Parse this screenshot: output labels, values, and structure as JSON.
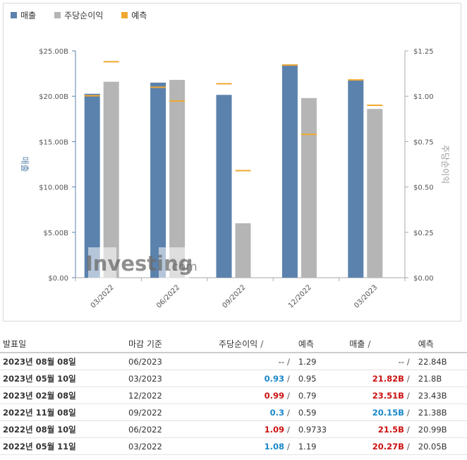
{
  "legend": {
    "revenue": "매출",
    "eps": "주당순이익",
    "forecast": "예측"
  },
  "colors": {
    "revenue": "#5b82ad",
    "eps": "#b5b5b5",
    "forecast": "#f0a830",
    "green_positive": "#1a87c9",
    "red_negative": "#cc1111"
  },
  "watermark": "Investing.com",
  "chart_data": {
    "type": "bar",
    "categories": [
      "03/2022",
      "06/2022",
      "09/2022",
      "12/2022",
      "03/2023"
    ],
    "series": [
      {
        "name": "매출",
        "axis": "left",
        "values": [
          20.27,
          21.5,
          20.15,
          23.51,
          21.82
        ],
        "forecast": [
          20.05,
          20.99,
          21.38,
          23.43,
          21.8
        ]
      },
      {
        "name": "주당순이익",
        "axis": "right",
        "values": [
          1.08,
          1.09,
          0.3,
          0.99,
          0.93
        ],
        "forecast": [
          1.19,
          0.9733,
          0.59,
          0.79,
          0.95
        ]
      }
    ],
    "ylabel": "매출",
    "y2label": "주당순이익",
    "ylim": [
      0,
      25
    ],
    "y2lim": [
      0,
      1.25
    ],
    "yticks": [
      "$0.00",
      "$5.00B",
      "$10.00B",
      "$15.00B",
      "$20.00B",
      "$25.00B"
    ],
    "y2ticks": [
      "$0.00",
      "$0.25",
      "$0.50",
      "$0.75",
      "$1.00",
      "$1.25"
    ],
    "grid": false,
    "legend_position": "top-left"
  },
  "table": {
    "headers": {
      "date": "발표일",
      "period": "마감 기준",
      "eps": "주당순이익",
      "eps_forecast": "예측",
      "revenue": "매출",
      "rev_forecast": "예측",
      "slash": "/"
    },
    "rows": [
      {
        "date": "2023년 08월 08일",
        "period": "06/2023",
        "eps": "--",
        "eps_forecast": "1.29",
        "revenue": "--",
        "rev_forecast": "22.84B",
        "eps_color": "plain",
        "rev_color": "plain"
      },
      {
        "date": "2023년 05월 10일",
        "period": "03/2023",
        "eps": "0.93",
        "eps_forecast": "0.95",
        "revenue": "21.82B",
        "rev_forecast": "21.8B",
        "eps_color": "blue",
        "rev_color": "red"
      },
      {
        "date": "2023년 02월 08일",
        "period": "12/2022",
        "eps": "0.99",
        "eps_forecast": "0.79",
        "revenue": "23.51B",
        "rev_forecast": "23.43B",
        "eps_color": "red",
        "rev_color": "red"
      },
      {
        "date": "2022년 11월 08일",
        "period": "09/2022",
        "eps": "0.3",
        "eps_forecast": "0.59",
        "revenue": "20.15B",
        "rev_forecast": "21.38B",
        "eps_color": "blue",
        "rev_color": "blue"
      },
      {
        "date": "2022년 08월 10일",
        "period": "06/2022",
        "eps": "1.09",
        "eps_forecast": "0.9733",
        "revenue": "21.5B",
        "rev_forecast": "20.99B",
        "eps_color": "red",
        "rev_color": "red"
      },
      {
        "date": "2022년 05월 11일",
        "period": "03/2022",
        "eps": "1.08",
        "eps_forecast": "1.19",
        "revenue": "20.27B",
        "rev_forecast": "20.05B",
        "eps_color": "blue",
        "rev_color": "red"
      }
    ]
  }
}
